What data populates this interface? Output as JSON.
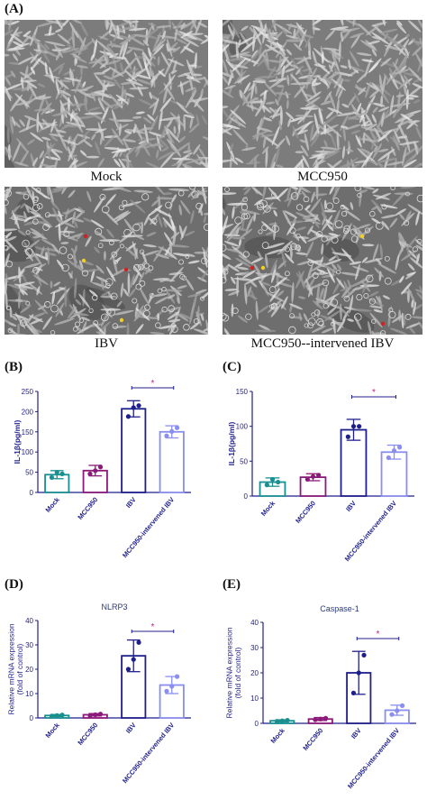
{
  "panel_a": {
    "label": "(A)",
    "captions": [
      "Mock",
      "MCC950",
      "IBV",
      "MCC950--intervened IBV"
    ],
    "arrow_colors": {
      "red": "#d42020",
      "yellow": "#f0d020"
    }
  },
  "colors": {
    "Mock": "#1a8f8f",
    "MCC950": "#8b1a7a",
    "IBV": "#1f1f8c",
    "MCC950-intervened IBV": "#8a8ef0",
    "significance": "#c0208a"
  },
  "chart_data": [
    {
      "panel": "(B)",
      "type": "bar",
      "title": "",
      "ylabel": "IL-1β(pg/ml)",
      "ylim": [
        0,
        250
      ],
      "yticks": [
        0,
        50,
        100,
        150,
        200,
        250
      ],
      "categories": [
        "Mock",
        "MCC950",
        "IBV",
        "MCC950-intervened IBV"
      ],
      "values": [
        44,
        54,
        207,
        150
      ],
      "errors": [
        10,
        13,
        20,
        15
      ],
      "points": [
        [
          37,
          50,
          46
        ],
        [
          46,
          54,
          63
        ],
        [
          188,
          210,
          215
        ],
        [
          140,
          151,
          160
        ]
      ],
      "significance": {
        "from": 2,
        "to": 3,
        "label": "*"
      }
    },
    {
      "panel": "(C)",
      "type": "bar",
      "title": "",
      "ylabel": "IL-1β(pg/ml)",
      "ylim": [
        0,
        150
      ],
      "yticks": [
        0,
        50,
        100,
        150
      ],
      "categories": [
        "Mock",
        "MCC950",
        "IBV",
        "MCC950-intervened IBV"
      ],
      "values": [
        20,
        27,
        95,
        63
      ],
      "errors": [
        6,
        5,
        15,
        10
      ],
      "points": [
        [
          16,
          24,
          20
        ],
        [
          24,
          28,
          30
        ],
        [
          85,
          100,
          100
        ],
        [
          55,
          65,
          70
        ]
      ],
      "significance": {
        "from": 2,
        "to": 3,
        "label": "*"
      }
    },
    {
      "panel": "(D)",
      "type": "bar",
      "title": "NLRP3",
      "ylabel": "Relative mRNA expression (fold of control)",
      "ylim": [
        0,
        40
      ],
      "yticks": [
        0,
        10,
        20,
        30,
        40
      ],
      "categories": [
        "Mock",
        "MCC950",
        "IBV",
        "MCC950-intervened IBV"
      ],
      "values": [
        1,
        1.3,
        25.5,
        13.5
      ],
      "errors": [
        0.4,
        0.5,
        6.5,
        3.5
      ],
      "points": [
        [
          0.8,
          1,
          1.2
        ],
        [
          1,
          1.3,
          1.6
        ],
        [
          20,
          24,
          31
        ],
        [
          11,
          13,
          17
        ]
      ],
      "significance": {
        "from": 2,
        "to": 3,
        "label": "*"
      }
    },
    {
      "panel": "(E)",
      "type": "bar",
      "title": "Caspase-1",
      "ylabel": "Relative mRNA expression (fold of control)",
      "ylim": [
        0,
        40
      ],
      "yticks": [
        0,
        10,
        20,
        30,
        40
      ],
      "categories": [
        "Mock",
        "MCC950",
        "IBV",
        "MCC950-intervened IBV"
      ],
      "values": [
        1,
        1.7,
        20,
        5.2
      ],
      "errors": [
        0.4,
        0.6,
        8.5,
        2
      ],
      "points": [
        [
          0.8,
          1,
          1.2
        ],
        [
          1.4,
          1.7,
          2
        ],
        [
          12,
          20,
          27
        ],
        [
          3.5,
          5,
          7
        ]
      ],
      "significance": {
        "from": 2,
        "to": 3,
        "label": "*"
      }
    }
  ]
}
